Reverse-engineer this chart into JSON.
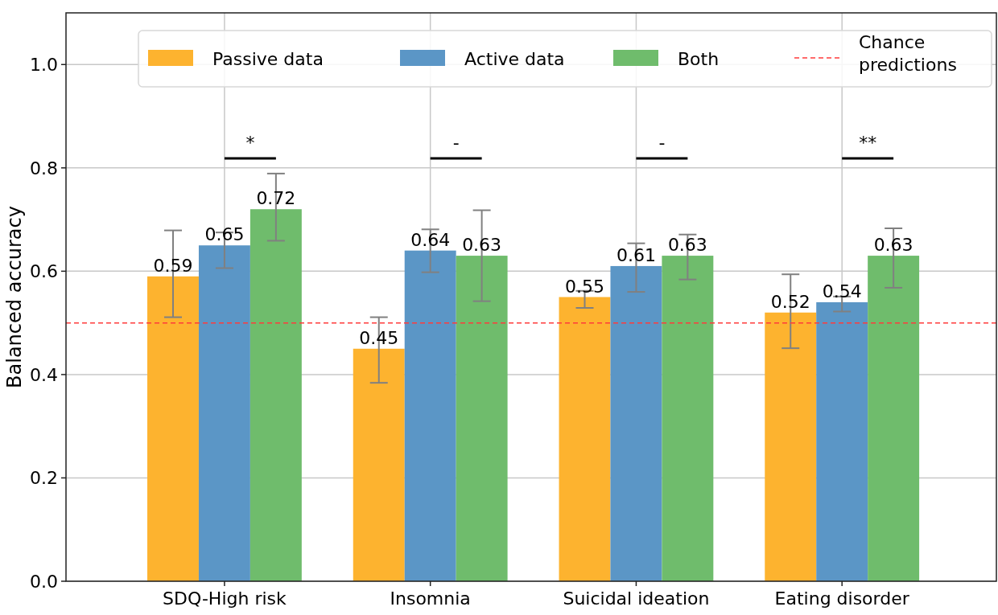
{
  "chart_data": {
    "type": "bar",
    "ylabel": "Balanced accuracy",
    "categories": [
      "SDQ-High risk",
      "Insomnia",
      "Suicidal ideation",
      "Eating disorder"
    ],
    "series": [
      {
        "name": "Passive data",
        "color": "#fdb32f",
        "values": [
          0.59,
          0.45,
          0.55,
          0.52
        ],
        "errors": [
          [
            0.511,
            0.679
          ],
          [
            0.384,
            0.511
          ],
          [
            0.529,
            0.562
          ],
          [
            0.451,
            0.594
          ]
        ]
      },
      {
        "name": "Active data",
        "color": "#5b96c6",
        "values": [
          0.65,
          0.64,
          0.61,
          0.54
        ],
        "errors": [
          [
            0.606,
            0.675
          ],
          [
            0.598,
            0.681
          ],
          [
            0.56,
            0.654
          ],
          [
            0.522,
            0.551
          ]
        ]
      },
      {
        "name": "Both",
        "color": "#6fbc6c",
        "values": [
          0.72,
          0.63,
          0.63,
          0.63
        ],
        "errors": [
          [
            0.659,
            0.789
          ],
          [
            0.542,
            0.718
          ],
          [
            0.584,
            0.671
          ],
          [
            0.568,
            0.683
          ]
        ]
      }
    ],
    "ref_lines": [
      {
        "axis": "y",
        "value": 0.5,
        "label": "Chance predictions",
        "color": "#ff3b3b",
        "line_style": "dashed"
      }
    ],
    "annotations": [
      "*",
      "-",
      "-",
      "**"
    ],
    "ylim": [
      0,
      1.1
    ],
    "yticks": [
      {
        "value": 0,
        "label": "0.0"
      },
      0.2,
      0.4,
      0.6,
      0.8,
      {
        "value": 1,
        "label": "1.0"
      }
    ],
    "data_labels": true,
    "grid": true,
    "legend": "top"
  }
}
